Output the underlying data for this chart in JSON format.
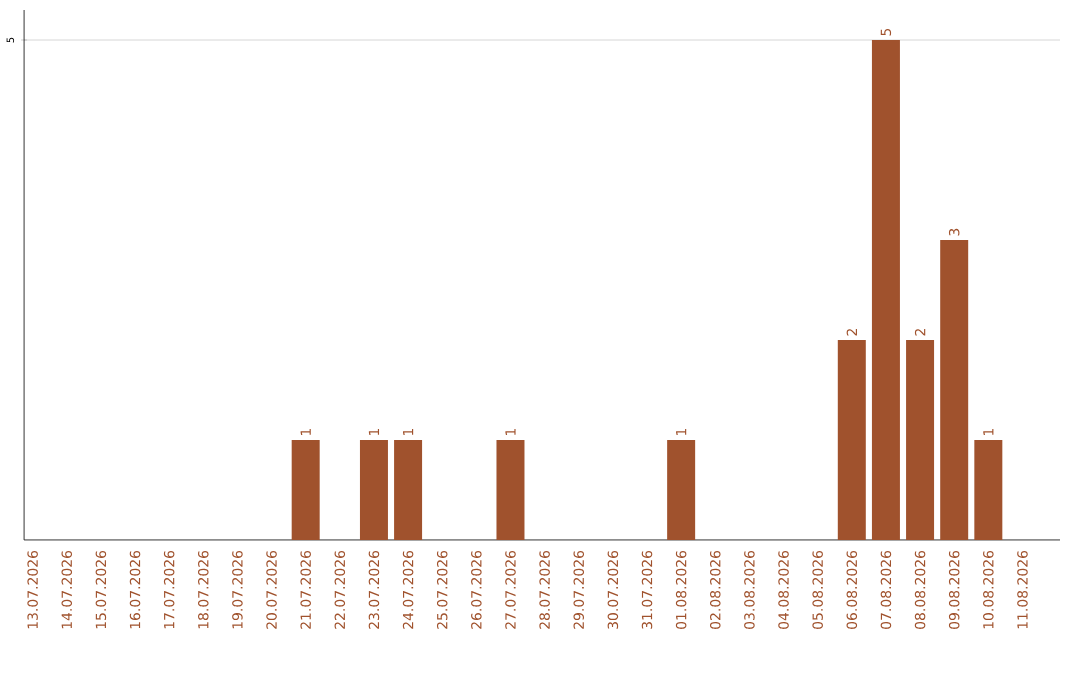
{
  "chart_data": {
    "type": "bar",
    "categories": [
      "13.07.2026",
      "14.07.2026",
      "15.07.2026",
      "16.07.2026",
      "17.07.2026",
      "18.07.2026",
      "19.07.2026",
      "20.07.2026",
      "21.07.2026",
      "22.07.2026",
      "23.07.2026",
      "24.07.2026",
      "25.07.2026",
      "26.07.2026",
      "27.07.2026",
      "28.07.2026",
      "29.07.2026",
      "30.07.2026",
      "31.07.2026",
      "01.08.2026",
      "02.08.2026",
      "03.08.2026",
      "04.08.2026",
      "05.08.2026",
      "06.08.2026",
      "07.08.2026",
      "08.08.2026",
      "09.08.2026",
      "10.08.2026",
      "11.08.2026"
    ],
    "values": [
      0,
      0,
      0,
      0,
      0,
      0,
      0,
      0,
      1,
      0,
      1,
      1,
      0,
      0,
      1,
      0,
      0,
      0,
      0,
      1,
      0,
      0,
      0,
      0,
      2,
      5,
      2,
      3,
      1,
      0
    ],
    "value_labels": [
      null,
      null,
      null,
      null,
      null,
      null,
      null,
      null,
      "1",
      null,
      "1",
      "1",
      null,
      null,
      "1",
      null,
      null,
      null,
      null,
      "1",
      null,
      null,
      null,
      null,
      "2",
      "5",
      "2",
      "3",
      "1",
      null
    ],
    "color": "#a0522d",
    "ylim": [
      0,
      5.3
    ],
    "yticks": [
      5
    ],
    "grid": "y"
  }
}
